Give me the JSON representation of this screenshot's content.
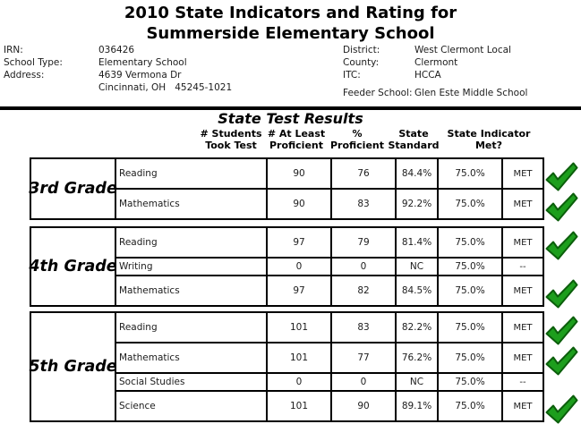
{
  "title": {
    "line1": "2010 State Indicators and Rating for",
    "line2": "Summerside Elementary School"
  },
  "info": {
    "left": {
      "irn_label": "IRN:",
      "irn_value": "036426",
      "type_label": "School Type:",
      "type_value": "Elementary School",
      "addr_label": "Address:",
      "addr_line1": "4639 Vermona Dr",
      "addr_line2": "Cincinnati, OH   45245-1021"
    },
    "right": {
      "district_label": "District:",
      "district_value": "West Clermont Local",
      "county_label": "County:",
      "county_value": "Clermont",
      "itc_label": "ITC:",
      "itc_value": "HCCA",
      "feeder_label": "Feeder School:",
      "feeder_value": "Glen Este Middle School"
    }
  },
  "section": {
    "title": "State Test Results"
  },
  "columns": [
    {
      "line1": "# Students",
      "line2": "Took Test"
    },
    {
      "line1": "# At Least",
      "line2": "Proficient"
    },
    {
      "line1": "%",
      "line2": "Proficient"
    },
    {
      "line1": "State",
      "line2": "Standard"
    },
    {
      "line1": "State Indicator",
      "line2": "Met?"
    }
  ],
  "grades": [
    {
      "grade": "3rd Grade",
      "rows": [
        {
          "subject": "Reading",
          "took": "90",
          "proficient": "76",
          "pct": "84.4%",
          "standard": "75.0%",
          "met": "MET",
          "check": true,
          "thin": false
        },
        {
          "subject": "Mathematics",
          "took": "90",
          "proficient": "83",
          "pct": "92.2%",
          "standard": "75.0%",
          "met": "MET",
          "check": true,
          "thin": false
        }
      ]
    },
    {
      "grade": "4th Grade",
      "rows": [
        {
          "subject": "Reading",
          "took": "97",
          "proficient": "79",
          "pct": "81.4%",
          "standard": "75.0%",
          "met": "MET",
          "check": true,
          "thin": false
        },
        {
          "subject": "Writing",
          "took": "0",
          "proficient": "0",
          "pct": "NC",
          "standard": "75.0%",
          "met": "--",
          "check": false,
          "thin": true
        },
        {
          "subject": "Mathematics",
          "took": "97",
          "proficient": "82",
          "pct": "84.5%",
          "standard": "75.0%",
          "met": "MET",
          "check": true,
          "thin": false
        }
      ]
    },
    {
      "grade": "5th Grade",
      "rows": [
        {
          "subject": "Reading",
          "took": "101",
          "proficient": "83",
          "pct": "82.2%",
          "standard": "75.0%",
          "met": "MET",
          "check": true,
          "thin": false
        },
        {
          "subject": "Mathematics",
          "took": "101",
          "proficient": "77",
          "pct": "76.2%",
          "standard": "75.0%",
          "met": "MET",
          "check": true,
          "thin": false
        },
        {
          "subject": "Social Studies",
          "took": "0",
          "proficient": "0",
          "pct": "NC",
          "standard": "75.0%",
          "met": "--",
          "check": false,
          "thin": true
        },
        {
          "subject": "Science",
          "took": "101",
          "proficient": "90",
          "pct": "89.1%",
          "standard": "75.0%",
          "met": "MET",
          "check": true,
          "thin": false
        }
      ]
    }
  ],
  "colors": {
    "check_green": "#1d9e1d",
    "check_border": "#0b5e0b",
    "border_black": "#000000",
    "text": "#1c1c1c"
  }
}
